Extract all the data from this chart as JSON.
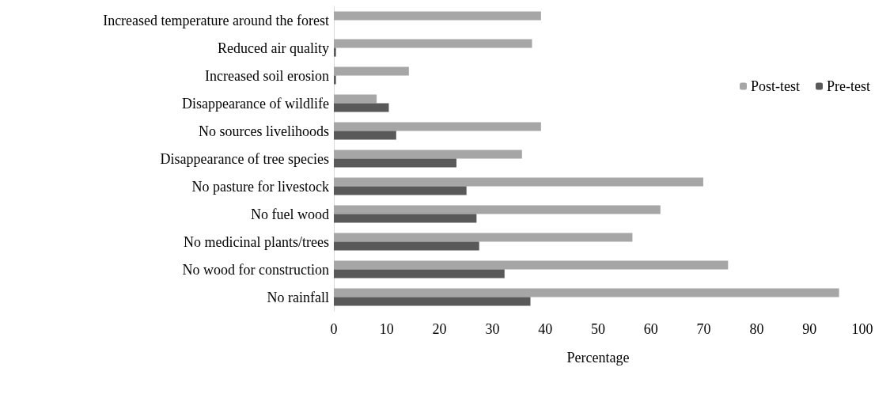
{
  "chart_data": {
    "type": "bar",
    "orientation": "horizontal",
    "xlabel": "Percentage",
    "categories": [
      "Increased temperature around the forest",
      "Reduced air quality",
      "Increased soil erosion",
      "Disappearance of wildlife",
      "No sources livelihoods",
      "Disappearance of tree species",
      "No pasture for livestock",
      "No fuel wood",
      "No medicinal plants/trees",
      "No wood for construction",
      "No rainfall"
    ],
    "series": [
      {
        "name": "Post-test",
        "color": "#a6a6a6",
        "values": [
          39.2,
          37.5,
          14.2,
          8.1,
          39.2,
          35.6,
          69.9,
          61.8,
          56.5,
          74.6,
          95.6
        ]
      },
      {
        "name": "Pre-test",
        "color": "#595959",
        "values": [
          0,
          0.4,
          0.4,
          10.4,
          11.8,
          23.2,
          25.1,
          27.0,
          27.5,
          32.3,
          37.2
        ]
      }
    ],
    "xlim": [
      0,
      100
    ],
    "xticks": [
      0,
      10,
      20,
      30,
      40,
      50,
      60,
      70,
      80,
      90,
      100
    ],
    "grid": false,
    "legend": "right"
  }
}
